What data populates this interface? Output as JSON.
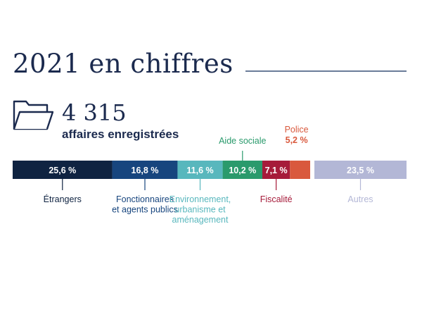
{
  "header": {
    "title": "2021 en chiffres",
    "count_value": "4 315",
    "count_label": "affaires enregistrées"
  },
  "icons": {
    "folder": "folder-icon"
  },
  "colors": {
    "title": "#1b2a4e",
    "rule": "#6a7c99"
  },
  "chart_data": {
    "type": "bar",
    "orientation": "horizontal-stacked",
    "unit": "%",
    "grid": false,
    "categories": [
      "Étrangers",
      "Fonctionnaires et agents publics",
      "Environnement, urbanisme et aménagement",
      "Aide sociale",
      "Fiscalité",
      "Police",
      "Autres"
    ],
    "values": [
      25.6,
      16.8,
      11.6,
      10.2,
      7.1,
      5.2,
      23.5
    ],
    "value_labels": [
      "25,6 %",
      "16,8 %",
      "11,6 %",
      "10,2 %",
      "7,1 %",
      "5,2 %",
      "23,5 %"
    ],
    "category_labels": [
      [
        "Étrangers"
      ],
      [
        "Fonctionnaires",
        "et agents publics"
      ],
      [
        "Environnement,",
        "urbanisme et",
        "aménagement"
      ],
      [
        "Aide sociale"
      ],
      [
        "Fiscalité"
      ],
      [
        "Police"
      ],
      [
        "Autres"
      ]
    ],
    "colors": [
      "#0f2341",
      "#17457e",
      "#58b7bd",
      "#2a9a6c",
      "#a61b3a",
      "#d9593d",
      "#b3b7d6"
    ],
    "label_colors": [
      "#0f2341",
      "#17457e",
      "#58b7bd",
      "#2a9a6c",
      "#a61b3a",
      "#d9593d",
      "#b3b7d6"
    ],
    "value_in_bar": [
      true,
      true,
      true,
      true,
      true,
      false,
      true
    ],
    "label_placement": [
      "below",
      "below",
      "below",
      "above",
      "below",
      "above",
      "below"
    ],
    "separate_last_segment": true
  }
}
